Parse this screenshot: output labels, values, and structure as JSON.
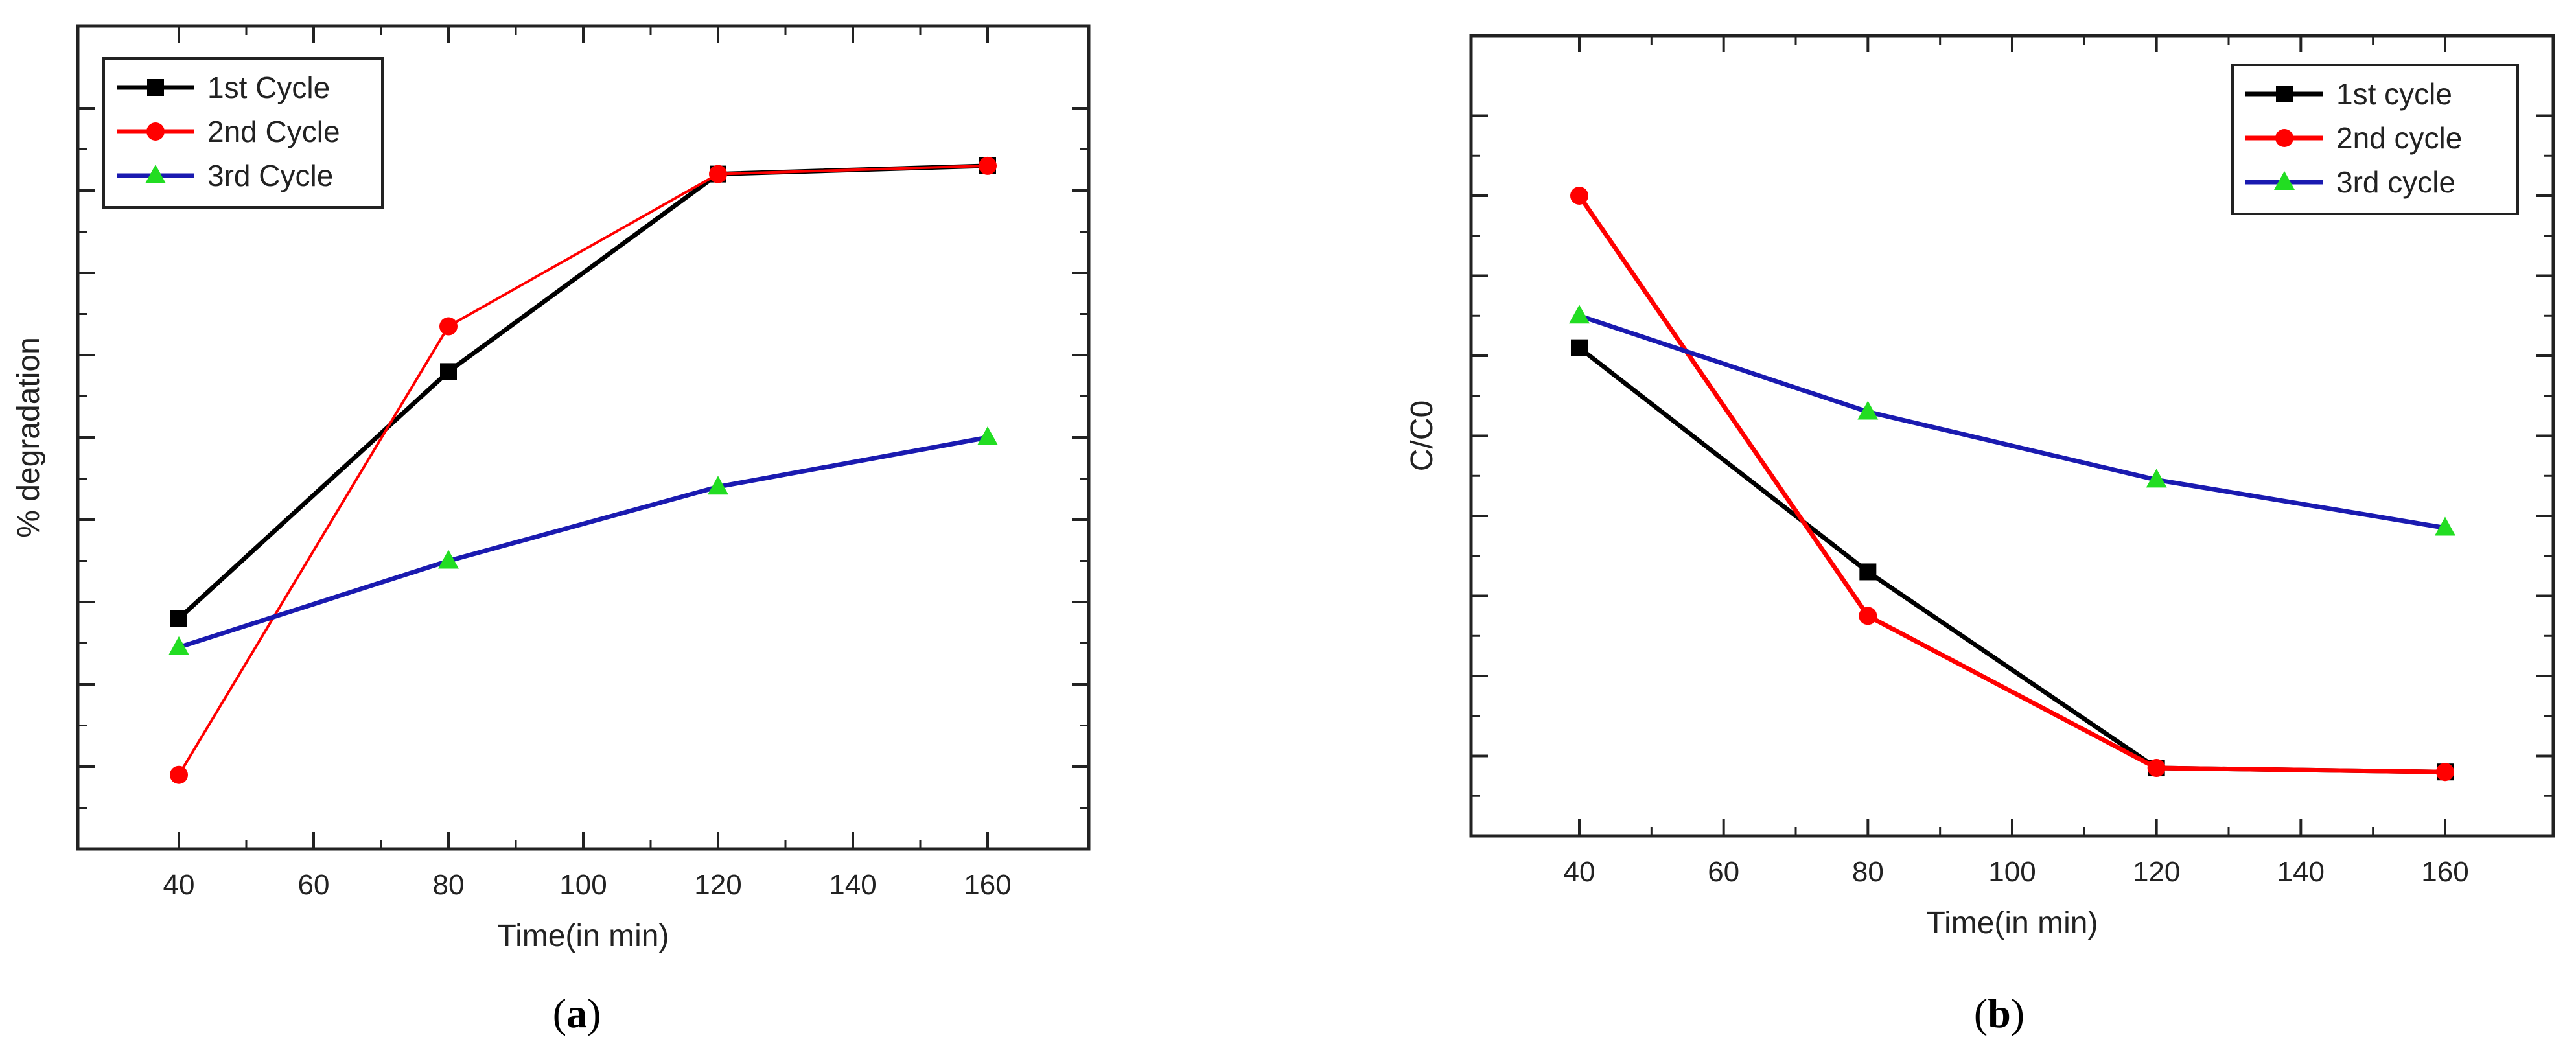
{
  "panels": [
    {
      "caption_prefix": "(",
      "caption_letter": "a",
      "caption_suffix": ")"
    },
    {
      "caption_prefix": "(",
      "caption_letter": "b",
      "caption_suffix": ")"
    }
  ],
  "chart_data": [
    {
      "type": "line",
      "title": "",
      "xlabel": "Time(in min)",
      "ylabel": "% degradation",
      "x": [
        40,
        80,
        120,
        160
      ],
      "x_ticks": [
        40,
        60,
        80,
        100,
        120,
        140,
        160
      ],
      "xlim": [
        25,
        175
      ],
      "ylim": [
        0,
        10
      ],
      "y_tick_labels_shown": false,
      "legend_position": "top-left",
      "grid": false,
      "series": [
        {
          "name": "1st Cycle",
          "values": [
            2.8,
            5.8,
            8.2,
            8.3
          ],
          "color": "#000000",
          "marker": "square"
        },
        {
          "name": "2nd Cycle",
          "values": [
            0.9,
            6.35,
            8.2,
            8.3
          ],
          "color": "#ff0000",
          "marker": "circle"
        },
        {
          "name": "3rd Cycle",
          "values": [
            2.45,
            3.5,
            4.4,
            5.0
          ],
          "color": "#1a1ab0",
          "marker": "triangle",
          "marker_color": "#22dd22"
        }
      ]
    },
    {
      "type": "line",
      "title": "",
      "xlabel": "Time(in min)",
      "ylabel": "C/C0",
      "x": [
        40,
        80,
        120,
        160
      ],
      "x_ticks": [
        40,
        60,
        80,
        100,
        120,
        140,
        160
      ],
      "xlim": [
        25,
        175
      ],
      "ylim": [
        0,
        10
      ],
      "y_tick_labels_shown": false,
      "legend_position": "top-right",
      "grid": false,
      "series": [
        {
          "name": "1st cycle",
          "values": [
            6.1,
            3.3,
            0.85,
            0.8
          ],
          "color": "#000000",
          "marker": "square"
        },
        {
          "name": " 2nd cycle",
          "values": [
            8.0,
            2.75,
            0.85,
            0.8
          ],
          "color": "#ff0000",
          "marker": "circle"
        },
        {
          "name": "3rd cycle",
          "values": [
            6.5,
            5.3,
            4.45,
            3.85
          ],
          "color": "#1a1ab0",
          "marker": "triangle",
          "marker_color": "#22dd22"
        }
      ]
    }
  ]
}
